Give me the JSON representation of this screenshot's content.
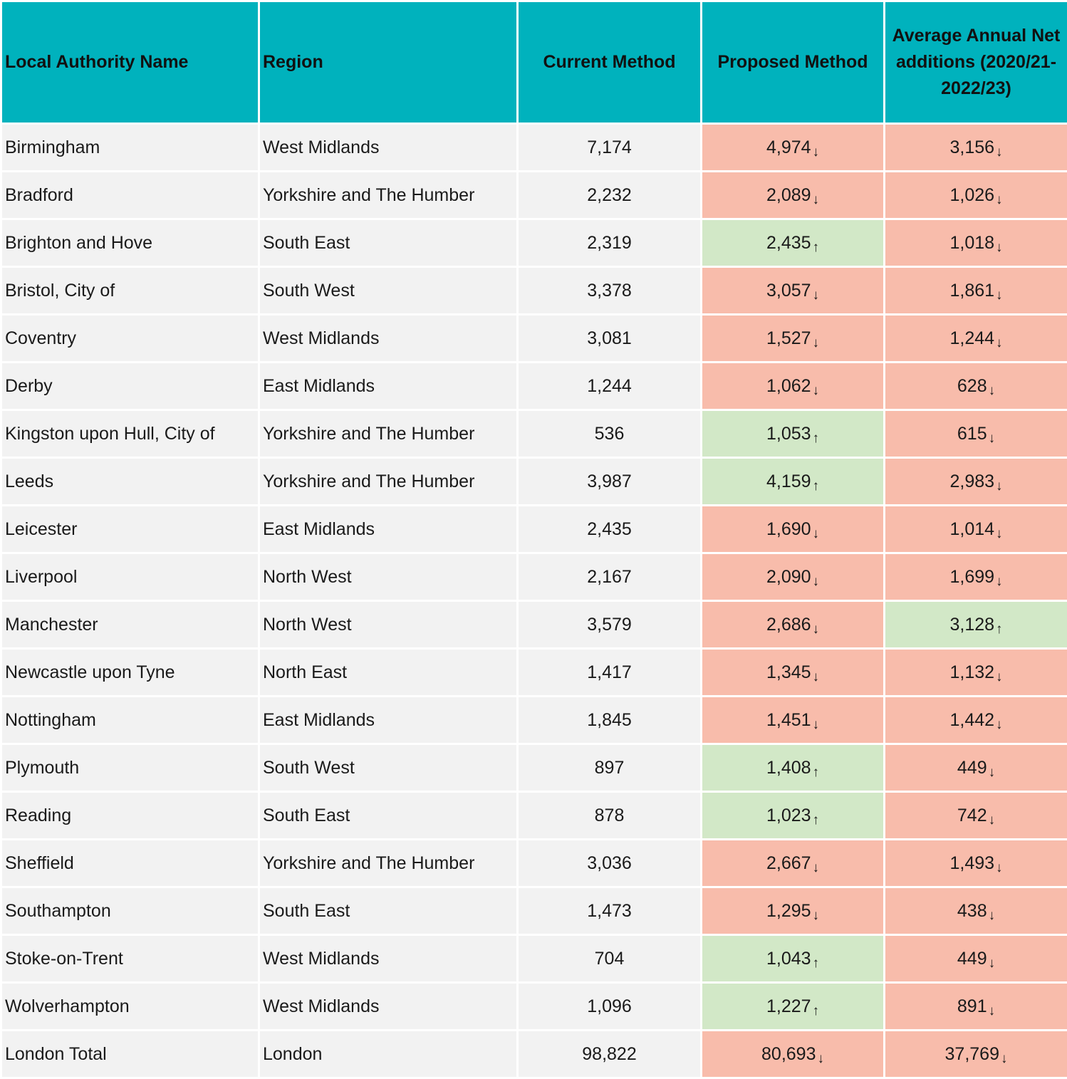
{
  "colors": {
    "header": "#00b2bd",
    "cell": "#f2f2f2",
    "decrease": "#f8bcab",
    "increase": "#d2e8c7"
  },
  "headers": [
    "Local Authority Name",
    "Region",
    "Current Method",
    "Proposed Method",
    "Average Annual Net additions (2020/21-2022/23)"
  ],
  "rows": [
    {
      "name": "Birmingham",
      "region": "West Midlands",
      "current": "7,174",
      "proposed": "4,974",
      "proposed_dir": "down",
      "average": "3,156",
      "average_dir": "down"
    },
    {
      "name": "Bradford",
      "region": "Yorkshire and The Humber",
      "current": "2,232",
      "proposed": "2,089",
      "proposed_dir": "down",
      "average": "1,026",
      "average_dir": "down"
    },
    {
      "name": "Brighton and Hove",
      "region": "South East",
      "current": "2,319",
      "proposed": "2,435",
      "proposed_dir": "up",
      "average": "1,018",
      "average_dir": "down"
    },
    {
      "name": "Bristol, City of",
      "region": "South West",
      "current": "3,378",
      "proposed": "3,057",
      "proposed_dir": "down",
      "average": "1,861",
      "average_dir": "down"
    },
    {
      "name": "Coventry",
      "region": "West Midlands",
      "current": "3,081",
      "proposed": "1,527",
      "proposed_dir": "down",
      "average": "1,244",
      "average_dir": "down"
    },
    {
      "name": "Derby",
      "region": "East Midlands",
      "current": "1,244",
      "proposed": "1,062",
      "proposed_dir": "down",
      "average": "628",
      "average_dir": "down"
    },
    {
      "name": "Kingston upon Hull, City of",
      "region": "Yorkshire and The Humber",
      "current": "536",
      "proposed": "1,053",
      "proposed_dir": "up",
      "average": "615",
      "average_dir": "down"
    },
    {
      "name": "Leeds",
      "region": "Yorkshire and The Humber",
      "current": "3,987",
      "proposed": "4,159",
      "proposed_dir": "up",
      "average": "2,983",
      "average_dir": "down"
    },
    {
      "name": "Leicester",
      "region": "East Midlands",
      "current": "2,435",
      "proposed": "1,690",
      "proposed_dir": "down",
      "average": "1,014",
      "average_dir": "down"
    },
    {
      "name": "Liverpool",
      "region": "North West",
      "current": "2,167",
      "proposed": "2,090",
      "proposed_dir": "down",
      "average": "1,699",
      "average_dir": "down"
    },
    {
      "name": "Manchester",
      "region": "North West",
      "current": "3,579",
      "proposed": "2,686",
      "proposed_dir": "down",
      "average": "3,128",
      "average_dir": "up"
    },
    {
      "name": "Newcastle upon Tyne",
      "region": "North East",
      "current": "1,417",
      "proposed": "1,345",
      "proposed_dir": "down",
      "average": "1,132",
      "average_dir": "down"
    },
    {
      "name": "Nottingham",
      "region": "East Midlands",
      "current": "1,845",
      "proposed": "1,451",
      "proposed_dir": "down",
      "average": "1,442",
      "average_dir": "down"
    },
    {
      "name": "Plymouth",
      "region": "South West",
      "current": "897",
      "proposed": "1,408",
      "proposed_dir": "up",
      "average": "449",
      "average_dir": "down"
    },
    {
      "name": "Reading",
      "region": "South East",
      "current": "878",
      "proposed": "1,023",
      "proposed_dir": "up",
      "average": "742",
      "average_dir": "down"
    },
    {
      "name": "Sheffield",
      "region": "Yorkshire and The Humber",
      "current": "3,036",
      "proposed": "2,667",
      "proposed_dir": "down",
      "average": "1,493",
      "average_dir": "down"
    },
    {
      "name": "Southampton",
      "region": "South East",
      "current": "1,473",
      "proposed": "1,295",
      "proposed_dir": "down",
      "average": "438",
      "average_dir": "down"
    },
    {
      "name": "Stoke-on-Trent",
      "region": "West Midlands",
      "current": "704",
      "proposed": "1,043",
      "proposed_dir": "up",
      "average": "449",
      "average_dir": "down"
    },
    {
      "name": "Wolverhampton",
      "region": "West Midlands",
      "current": "1,096",
      "proposed": "1,227",
      "proposed_dir": "up",
      "average": "891",
      "average_dir": "down"
    },
    {
      "name": "London Total",
      "region": "London",
      "current": "98,822",
      "proposed": "80,693",
      "proposed_dir": "down",
      "average": "37,769",
      "average_dir": "down"
    }
  ]
}
